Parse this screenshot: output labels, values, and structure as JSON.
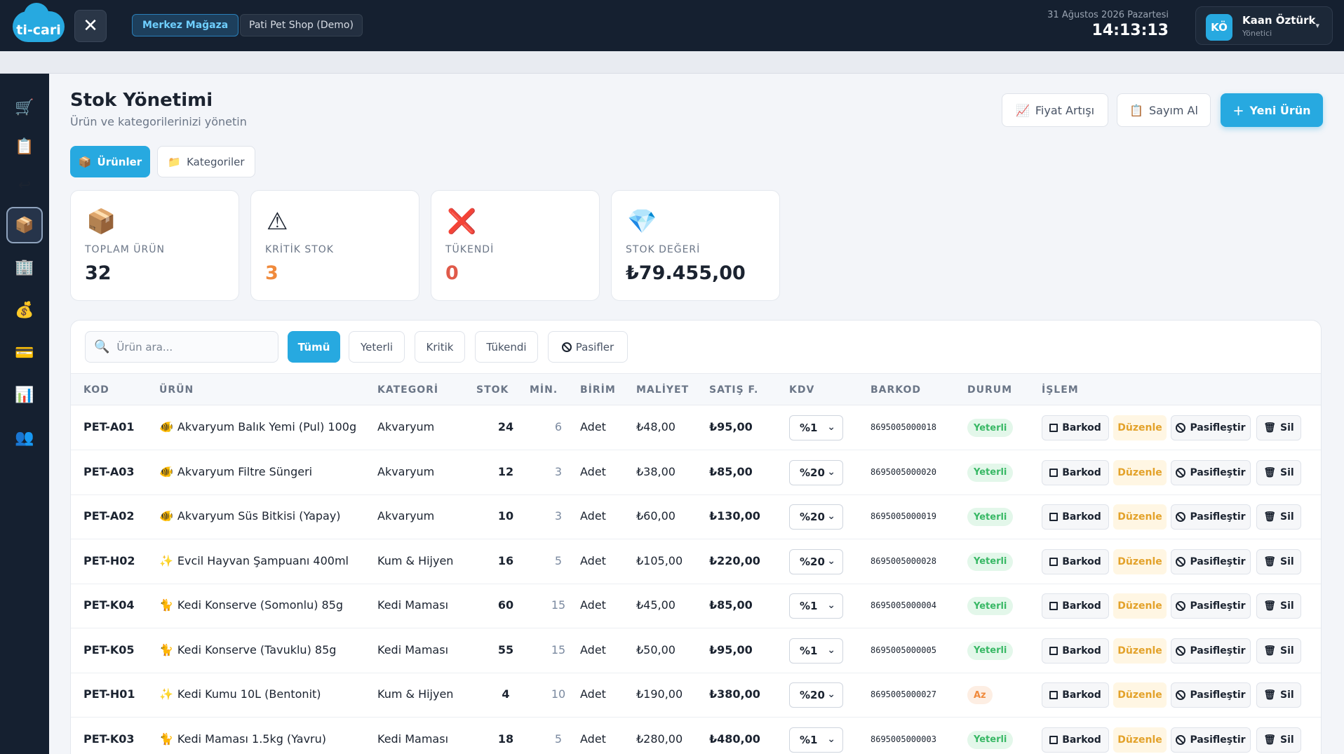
{
  "header": {
    "logo_text": "ti-cari",
    "store_label": "Merkez Mağaza",
    "shop_label": "Pati Pet Shop (Demo)",
    "date": "31 Ağustos 2026 Pazartesi",
    "time": "14:13:13",
    "user": {
      "initials": "KÖ",
      "name": "Kaan Öztürk",
      "role": "Yönetici"
    }
  },
  "sidebar": {
    "items": [
      {
        "icon": "cart-icon",
        "glyph": "🛒"
      },
      {
        "icon": "clipboard-icon",
        "glyph": "📋"
      },
      {
        "icon": "return-icon",
        "glyph": "↩"
      },
      {
        "icon": "box-icon",
        "glyph": "📦"
      },
      {
        "icon": "building-icon",
        "glyph": "🏢"
      },
      {
        "icon": "money-bag-icon",
        "glyph": "💰"
      },
      {
        "icon": "credit-card-icon",
        "glyph": "💳"
      },
      {
        "icon": "chart-icon",
        "glyph": "📊"
      },
      {
        "icon": "users-icon",
        "glyph": "👥"
      }
    ]
  },
  "page": {
    "title": "Stok Yönetimi",
    "subtitle": "Ürün ve kategorilerinizi yönetin",
    "actions": {
      "price_increase": "Fiyat Artışı",
      "count": "Sayım Al",
      "new_product": "Yeni Ürün"
    },
    "tabs": {
      "products": "Ürünler",
      "categories": "Kategoriler"
    }
  },
  "stats": [
    {
      "label": "TOPLAM ÜRÜN",
      "value": "32",
      "color": "#1b2330",
      "icon": "box-icon",
      "glyph": "📦"
    },
    {
      "label": "KRİTİK STOK",
      "value": "3",
      "color": "#f08a3c",
      "icon": "warning-icon",
      "glyph": "⚠"
    },
    {
      "label": "TÜKENDİ",
      "value": "0",
      "color": "#e05a4a",
      "icon": "cross-icon",
      "glyph": "❌"
    },
    {
      "label": "STOK DEĞERİ",
      "value": "₺79.455,00",
      "color": "#1b2330",
      "icon": "diamond-icon",
      "glyph": "💎"
    }
  ],
  "filters": {
    "search_placeholder": "Ürün ara...",
    "all": "Tümü",
    "sufficient": "Yeterli",
    "critical": "Kritik",
    "out": "Tükendi",
    "passive": "Pasifler"
  },
  "table": {
    "headers": [
      "KOD",
      "ÜRÜN",
      "KATEGORİ",
      "STOK",
      "MİN.",
      "BİRİM",
      "MALİYET",
      "SATIŞ F.",
      "KDV",
      "BARKOD",
      "DURUM",
      "İŞLEM"
    ],
    "action_labels": {
      "barcode": "Barkod",
      "edit": "Düzenle",
      "deactivate": "Pasifleştir",
      "delete": "Sil"
    },
    "rows": [
      {
        "code": "PET-A01",
        "icon": "🐠",
        "name": "Akvaryum Balık Yemi (Pul) 100g",
        "category": "Akvaryum",
        "stock": "24",
        "min": "6",
        "unit": "Adet",
        "cost": "₺48,00",
        "sale": "₺95,00",
        "kdv": "%1",
        "barcode": "8695005000018",
        "status": "Yeterli",
        "status_type": "ok"
      },
      {
        "code": "PET-A03",
        "icon": "🐠",
        "name": "Akvaryum Filtre Süngeri",
        "category": "Akvaryum",
        "stock": "12",
        "min": "3",
        "unit": "Adet",
        "cost": "₺38,00",
        "sale": "₺85,00",
        "kdv": "%20",
        "barcode": "8695005000020",
        "status": "Yeterli",
        "status_type": "ok"
      },
      {
        "code": "PET-A02",
        "icon": "🐠",
        "name": "Akvaryum Süs Bitkisi (Yapay)",
        "category": "Akvaryum",
        "stock": "10",
        "min": "3",
        "unit": "Adet",
        "cost": "₺60,00",
        "sale": "₺130,00",
        "kdv": "%20",
        "barcode": "8695005000019",
        "status": "Yeterli",
        "status_type": "ok"
      },
      {
        "code": "PET-H02",
        "icon": "✨",
        "name": "Evcil Hayvan Şampuanı 400ml",
        "category": "Kum & Hijyen",
        "stock": "16",
        "min": "5",
        "unit": "Adet",
        "cost": "₺105,00",
        "sale": "₺220,00",
        "kdv": "%20",
        "barcode": "8695005000028",
        "status": "Yeterli",
        "status_type": "ok"
      },
      {
        "code": "PET-K04",
        "icon": "🐈",
        "name": "Kedi Konserve (Somonlu) 85g",
        "category": "Kedi Maması",
        "stock": "60",
        "min": "15",
        "unit": "Adet",
        "cost": "₺45,00",
        "sale": "₺85,00",
        "kdv": "%1",
        "barcode": "8695005000004",
        "status": "Yeterli",
        "status_type": "ok"
      },
      {
        "code": "PET-K05",
        "icon": "🐈",
        "name": "Kedi Konserve (Tavuklu) 85g",
        "category": "Kedi Maması",
        "stock": "55",
        "min": "15",
        "unit": "Adet",
        "cost": "₺50,00",
        "sale": "₺95,00",
        "kdv": "%1",
        "barcode": "8695005000005",
        "status": "Yeterli",
        "status_type": "ok"
      },
      {
        "code": "PET-H01",
        "icon": "✨",
        "name": "Kedi Kumu 10L (Bentonit)",
        "category": "Kum & Hijyen",
        "stock": "4",
        "min": "10",
        "unit": "Adet",
        "cost": "₺190,00",
        "sale": "₺380,00",
        "kdv": "%20",
        "barcode": "8695005000027",
        "status": "Az",
        "status_type": "low"
      },
      {
        "code": "PET-K03",
        "icon": "🐈",
        "name": "Kedi Maması 1.5kg (Yavru)",
        "category": "Kedi Maması",
        "stock": "18",
        "min": "5",
        "unit": "Adet",
        "cost": "₺280,00",
        "sale": "₺480,00",
        "kdv": "%1",
        "barcode": "8695005000003",
        "status": "Yeterli",
        "status_type": "ok"
      }
    ]
  }
}
